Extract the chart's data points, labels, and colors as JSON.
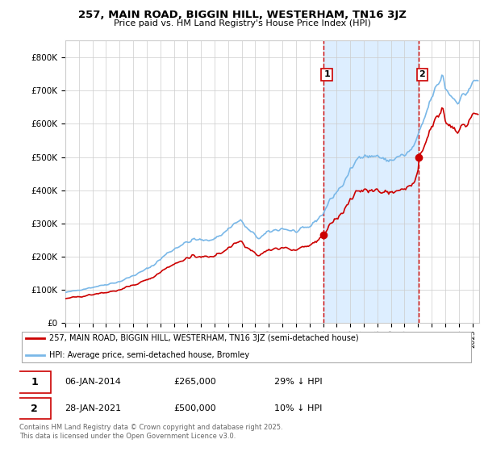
{
  "title": "257, MAIN ROAD, BIGGIN HILL, WESTERHAM, TN16 3JZ",
  "subtitle": "Price paid vs. HM Land Registry's House Price Index (HPI)",
  "legend_line1": "257, MAIN ROAD, BIGGIN HILL, WESTERHAM, TN16 3JZ (semi-detached house)",
  "legend_line2": "HPI: Average price, semi-detached house, Bromley",
  "footnote": "Contains HM Land Registry data © Crown copyright and database right 2025.\nThis data is licensed under the Open Government Licence v3.0.",
  "annotation1_label": "1",
  "annotation1_date": "06-JAN-2014",
  "annotation1_price": "£265,000",
  "annotation1_hpi": "29% ↓ HPI",
  "annotation2_label": "2",
  "annotation2_date": "28-JAN-2021",
  "annotation2_price": "£500,000",
  "annotation2_hpi": "10% ↓ HPI",
  "red_color": "#cc0000",
  "blue_color": "#7ab8e8",
  "shade_color": "#ddeeff",
  "ylim": [
    0,
    850000
  ],
  "yticks": [
    0,
    100000,
    200000,
    300000,
    400000,
    500000,
    600000,
    700000,
    800000
  ],
  "ytick_labels": [
    "£0",
    "£100K",
    "£200K",
    "£300K",
    "£400K",
    "£500K",
    "£600K",
    "£700K",
    "£800K"
  ],
  "sale1_year": 2014.04,
  "sale1_y": 265000,
  "sale2_year": 2021.07,
  "sale2_y": 500000,
  "xmin": 1995.0,
  "xmax": 2025.5,
  "bg_color": "#f0f4fa"
}
